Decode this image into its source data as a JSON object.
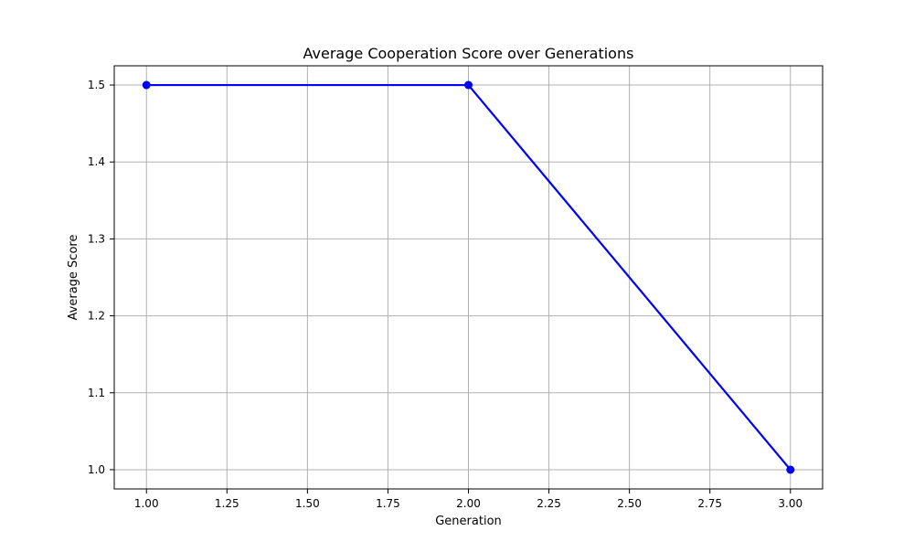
{
  "chart_data": {
    "type": "line",
    "title": "Average Cooperation Score over Generations",
    "xlabel": "Generation",
    "ylabel": "Average Score",
    "xlim": [
      0.9,
      3.1
    ],
    "ylim": [
      0.975,
      1.525
    ],
    "x_ticks": [
      1.0,
      1.25,
      1.5,
      1.75,
      2.0,
      2.25,
      2.5,
      2.75,
      3.0
    ],
    "x_tick_labels": [
      "1.00",
      "1.25",
      "1.50",
      "1.75",
      "2.00",
      "2.25",
      "2.50",
      "2.75",
      "3.00"
    ],
    "y_ticks": [
      1.0,
      1.1,
      1.2,
      1.3,
      1.4,
      1.5
    ],
    "y_tick_labels": [
      "1.0",
      "1.1",
      "1.2",
      "1.3",
      "1.4",
      "1.5"
    ],
    "grid": true,
    "series": [
      {
        "x": [
          1,
          2,
          3
        ],
        "y": [
          1.5,
          1.5,
          1.0
        ],
        "color": "#0000ff",
        "marker": "circle"
      }
    ]
  }
}
